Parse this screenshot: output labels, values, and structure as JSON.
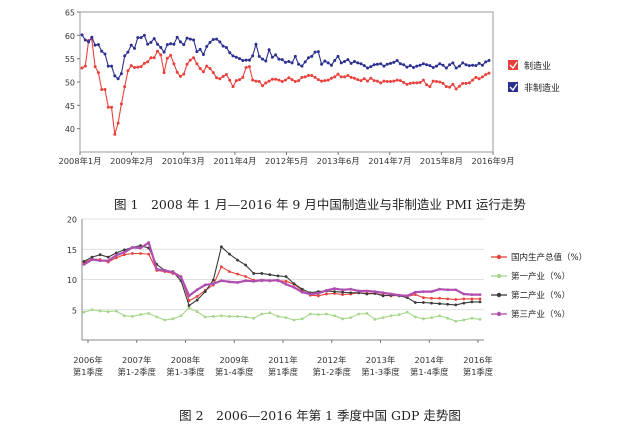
{
  "figure1": {
    "caption": "图 1　2008 年 1 月—2016 年 9 月中国制造业与非制造业 PMI 运行走势",
    "chart_data": {
      "type": "line",
      "x_ticks": [
        "2008年1月",
        "2009年2月",
        "2010年3月",
        "2011年4月",
        "2012年5月",
        "2013年6月",
        "2014年7月",
        "2015年8月",
        "2016年9月"
      ],
      "ylim": [
        35,
        65
      ],
      "y_ticks": [
        40,
        45,
        50,
        55,
        60,
        65
      ],
      "grid": false,
      "legend": "right",
      "series": [
        {
          "name": "制造业",
          "color": "#e8413b",
          "values": [
            53,
            53.4,
            58.9,
            59.2,
            53.3,
            52,
            48.4,
            48.4,
            44.6,
            44.6,
            38.8,
            41.2,
            45.3,
            49,
            52.4,
            53.5,
            53.1,
            53.2,
            53.3,
            54,
            54.3,
            55.2,
            55.2,
            56.6,
            55.8,
            52,
            55.1,
            55.7,
            53.9,
            52.1,
            51.2,
            51.7,
            53.8,
            54.7,
            55.2,
            53.9,
            52.9,
            52.2,
            53.4,
            52.9,
            52,
            50.9,
            50.7,
            51.2,
            51.6,
            50.4,
            49,
            50.3,
            50.5,
            51,
            53.1,
            53.3,
            50.4,
            50.2,
            50.1,
            49.2,
            49.8,
            50.2,
            50.6,
            50.6,
            50.4,
            50.1,
            50.4,
            50.9,
            50.5,
            50.1,
            50.3,
            51,
            51.1,
            51.4,
            51.4,
            51,
            50.5,
            50.2,
            50.3,
            50.4,
            50.8,
            51.1,
            51.7,
            51.1,
            51.1,
            51.4,
            51,
            50.8,
            50.5,
            50.3,
            50.7,
            50.2,
            50.8,
            50.3,
            50.2,
            49.8,
            50.2,
            50.1,
            50.1,
            50.2,
            50.4,
            50.3,
            49.9,
            49.5,
            49.7,
            49.8,
            49.8,
            49.9,
            50.4,
            49.4,
            49,
            50.2,
            50.1,
            50,
            49.7,
            49,
            48.9,
            49.5,
            48.5,
            49.1,
            49.7,
            49.7,
            49.8,
            50.4,
            51,
            50.7,
            51.1,
            51.6,
            51.9
          ]
        },
        {
          "name": "非制造业",
          "color": "#2b2f8f",
          "values": [
            60.1,
            59,
            58.6,
            59.6,
            57.9,
            58,
            56.6,
            56,
            53.4,
            53.4,
            51.3,
            50.7,
            51.8,
            55.6,
            56.4,
            57.9,
            57.2,
            59.5,
            59.5,
            60,
            58.1,
            58.5,
            59.3,
            58.1,
            57.4,
            56.4,
            58,
            58.2,
            58.1,
            59.6,
            58.6,
            58,
            59.4,
            59.2,
            59,
            56.5,
            57,
            55.9,
            57.6,
            58.5,
            59.1,
            59.2,
            58.6,
            57.7,
            57.4,
            56.3,
            55.6,
            55.3,
            55,
            54.6,
            54.7,
            54.7,
            55.6,
            58.1,
            55.5,
            54.9,
            54.5,
            56.9,
            55.3,
            55.8,
            54.9,
            54.8,
            54.2,
            54.4,
            54.1,
            55.5,
            53.8,
            53.4,
            54.3,
            55.2,
            55.5,
            56.4,
            56.5,
            53.8,
            54.5,
            54.1,
            53.6,
            54.6,
            55.5,
            54.1,
            54.4,
            54.8,
            54,
            54.4,
            54.1,
            53.9,
            53.5,
            53,
            53.3,
            53.7,
            53.8,
            53.9,
            53.4,
            53.8,
            54,
            54.2,
            54.6,
            53.9,
            53.7,
            53.2,
            53.5,
            53.1,
            53.4,
            53.6,
            53.9,
            53.7,
            53.5,
            53.1,
            53.4,
            53.9,
            53.6,
            53,
            53.7,
            54.1,
            53,
            53.4,
            54.1,
            53.7,
            53.5,
            53.6,
            53.5,
            54,
            53.6,
            54.3,
            54.6
          ]
        }
      ]
    }
  },
  "figure2": {
    "caption": "图 2　2006—2016 年第 1 季度中国 GDP 走势图",
    "chart_data": {
      "type": "line",
      "ylim": [
        0,
        20
      ],
      "y_ticks": [
        5,
        10,
        15,
        20
      ],
      "grid": true,
      "legend": "right",
      "x_ticks": [
        {
          "year": "2006年",
          "quarter": "第1季度"
        },
        {
          "year": "2007年",
          "quarter": "第1-2季度"
        },
        {
          "year": "2008年",
          "quarter": "第1-3季度"
        },
        {
          "year": "2009年",
          "quarter": "第1-4季度"
        },
        {
          "year": "2011年",
          "quarter": "第1季度"
        },
        {
          "year": "2012年",
          "quarter": "第1-2季度"
        },
        {
          "year": "2013年",
          "quarter": "第1-3季度"
        },
        {
          "year": "2014年",
          "quarter": "第1-4季度"
        },
        {
          "year": "2016年",
          "quarter": "第1季度"
        }
      ],
      "series": [
        {
          "name": "国内生产总值（%）",
          "color": "#e8413b",
          "values": [
            12.8,
            13.4,
            13.3,
            12.9,
            13.6,
            14.1,
            14.3,
            14.3,
            14.2,
            11.5,
            11.3,
            11,
            10.5,
            6.5,
            7.2,
            8.2,
            9.1,
            12.1,
            11.3,
            10.9,
            10.5,
            9.9,
            9.8,
            9.8,
            9.8,
            9.7,
            9.2,
            8.2,
            7.4,
            7.3,
            7.6,
            7.7,
            7.5,
            7.6,
            7.8,
            7.7,
            7.7,
            7.4,
            7.3,
            7.4,
            7.2,
            7.5,
            7,
            6.9,
            6.9,
            6.8,
            6.7,
            6.8,
            6.8,
            6.8
          ]
        },
        {
          "name": "第一产业（%）",
          "color": "#a6d68a",
          "values": [
            4.6,
            5,
            4.8,
            4.7,
            4.8,
            4,
            3.9,
            4.2,
            4.4,
            3.8,
            3.3,
            3.5,
            4,
            5.3,
            4.7,
            3.8,
            3.9,
            4,
            3.9,
            3.9,
            3.8,
            3.6,
            4.3,
            4.5,
            3.9,
            3.7,
            3.3,
            3.5,
            4.3,
            4.2,
            4.3,
            4,
            3.5,
            3.7,
            4.3,
            4.4,
            3.4,
            3.7,
            4,
            4.2,
            4.6,
            3.8,
            3.5,
            3.7,
            4,
            3.6,
            3.1,
            3.3,
            3.6,
            3.4
          ]
        },
        {
          "name": "第二产业（%）",
          "color": "#3a3a3a",
          "values": [
            13,
            13.7,
            14.1,
            13.7,
            14.4,
            14.9,
            15.3,
            15.6,
            15.2,
            12.5,
            11.5,
            11.3,
            9.8,
            5.7,
            6.6,
            8,
            9.9,
            15.4,
            14.2,
            13.2,
            12.4,
            11,
            11,
            10.8,
            10.6,
            10.5,
            9.3,
            8.4,
            7.8,
            8,
            8.1,
            8,
            7.9,
            7.8,
            7.8,
            7.6,
            7.7,
            7.3,
            7.4,
            7.3,
            7,
            6.2,
            6.2,
            6.1,
            6,
            5.9,
            5.8,
            6.1,
            6.3,
            6.3
          ]
        },
        {
          "name": "第三产业（%）",
          "color": "#b04fb0",
          "values": [
            12.5,
            13.3,
            13.1,
            13.1,
            14,
            14.5,
            15.3,
            15.2,
            16.1,
            11.7,
            11.5,
            11.2,
            10.4,
            7.3,
            8.3,
            9.1,
            9.3,
            9.8,
            9.6,
            9.5,
            9.8,
            9.7,
            9.9,
            9.8,
            9.9,
            9.2,
            8.7,
            7.9,
            7.6,
            7.7,
            8.2,
            8.5,
            8.3,
            8.4,
            8.1,
            8.1,
            8,
            7.8,
            7.6,
            7.4,
            7.3,
            7.9,
            8,
            8,
            8.4,
            8.3,
            8.3,
            7.6,
            7.5,
            7.5
          ]
        }
      ]
    }
  }
}
